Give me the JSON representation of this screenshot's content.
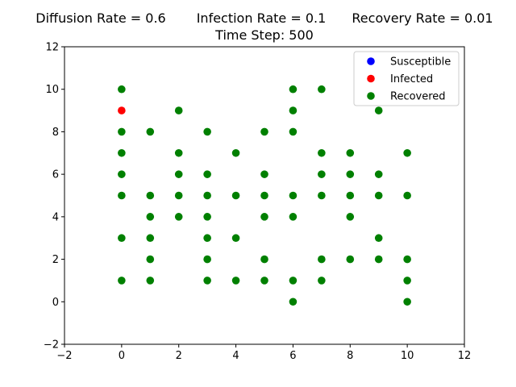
{
  "chart_data": {
    "type": "scatter",
    "title_parts": [
      "Diffusion Rate = 0.6",
      "Infection Rate = 0.1",
      "Recovery Rate = 0.01"
    ],
    "subtitle": "Time Step: 500",
    "xlabel": "",
    "ylabel": "",
    "xlim": [
      -2,
      12
    ],
    "ylim": [
      -2,
      12
    ],
    "xticks": [
      -2,
      0,
      2,
      4,
      6,
      8,
      10,
      12
    ],
    "yticks": [
      -2,
      0,
      2,
      4,
      6,
      8,
      10,
      12
    ],
    "grid": false,
    "legend_position": "top-right",
    "series": [
      {
        "name": "Susceptible",
        "color": "#0000ff",
        "points": []
      },
      {
        "name": "Infected",
        "color": "#ff0000",
        "points": [
          [
            0,
            9
          ]
        ]
      },
      {
        "name": "Recovered",
        "color": "#008000",
        "points": [
          [
            0,
            10
          ],
          [
            0,
            8
          ],
          [
            0,
            7
          ],
          [
            0,
            6
          ],
          [
            0,
            5
          ],
          [
            0,
            3
          ],
          [
            0,
            1
          ],
          [
            1,
            8
          ],
          [
            1,
            5
          ],
          [
            1,
            4
          ],
          [
            1,
            3
          ],
          [
            1,
            2
          ],
          [
            1,
            1
          ],
          [
            2,
            9
          ],
          [
            2,
            7
          ],
          [
            2,
            6
          ],
          [
            2,
            5
          ],
          [
            2,
            4
          ],
          [
            3,
            8
          ],
          [
            3,
            6
          ],
          [
            3,
            5
          ],
          [
            3,
            4
          ],
          [
            3,
            3
          ],
          [
            3,
            2
          ],
          [
            3,
            1
          ],
          [
            4,
            7
          ],
          [
            4,
            5
          ],
          [
            4,
            3
          ],
          [
            4,
            1
          ],
          [
            5,
            8
          ],
          [
            5,
            6
          ],
          [
            5,
            5
          ],
          [
            5,
            4
          ],
          [
            5,
            2
          ],
          [
            5,
            1
          ],
          [
            6,
            10
          ],
          [
            6,
            9
          ],
          [
            6,
            8
          ],
          [
            6,
            5
          ],
          [
            6,
            4
          ],
          [
            6,
            1
          ],
          [
            6,
            0
          ],
          [
            7,
            10
          ],
          [
            7,
            7
          ],
          [
            7,
            6
          ],
          [
            7,
            5
          ],
          [
            7,
            2
          ],
          [
            7,
            1
          ],
          [
            8,
            7
          ],
          [
            8,
            6
          ],
          [
            8,
            5
          ],
          [
            8,
            4
          ],
          [
            8,
            2
          ],
          [
            9,
            9
          ],
          [
            9,
            6
          ],
          [
            9,
            5
          ],
          [
            9,
            3
          ],
          [
            9,
            2
          ],
          [
            10,
            7
          ],
          [
            10,
            5
          ],
          [
            10,
            2
          ],
          [
            10,
            1
          ],
          [
            10,
            0
          ]
        ]
      }
    ]
  }
}
